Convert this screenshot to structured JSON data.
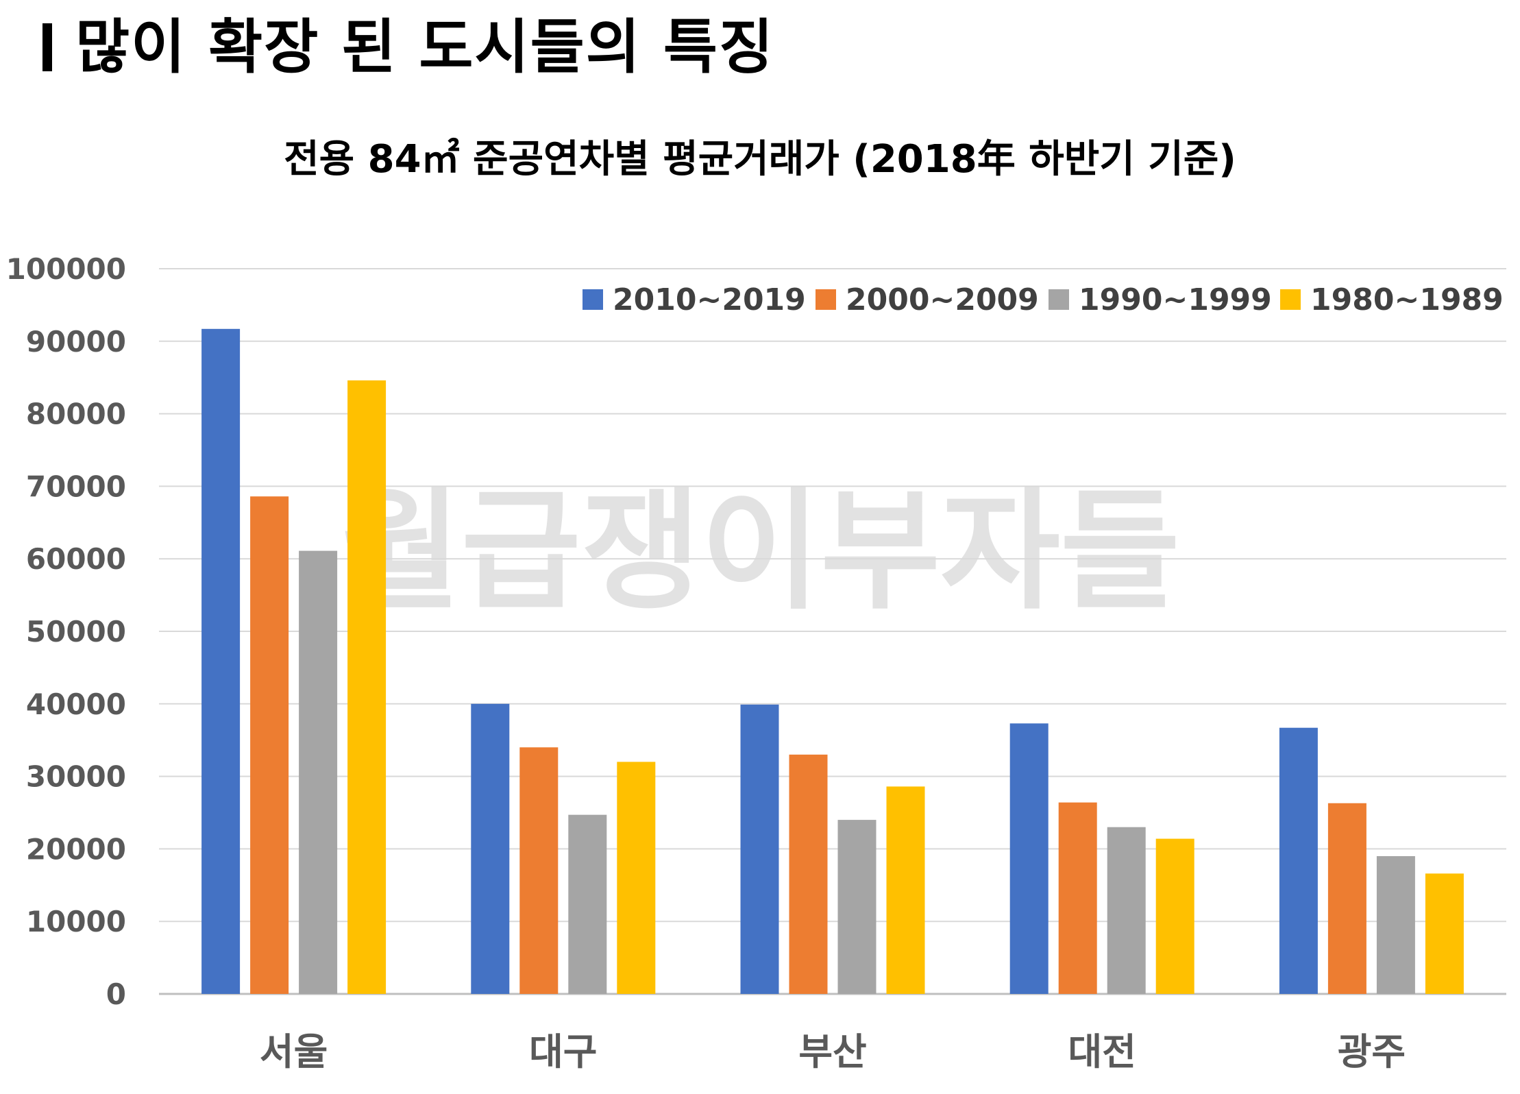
{
  "page_title": "많이 확장 된 도시들의 특징",
  "watermark": "월급쟁이부자들",
  "chart_data": {
    "type": "bar",
    "title": "전용 84㎡ 준공연차별 평균거래가 (2018年 하반기 기준)",
    "xlabel": "",
    "ylabel": "",
    "ylim": [
      0,
      100000
    ],
    "yticks": [
      "0",
      "10000",
      "20000",
      "30000",
      "40000",
      "50000",
      "60000",
      "70000",
      "80000",
      "90000",
      "100000"
    ],
    "categories": [
      "서울",
      "대구",
      "부산",
      "대전",
      "광주"
    ],
    "series": [
      {
        "name": "2010~2019",
        "color": "#4472C4",
        "values": [
          91700,
          40000,
          39900,
          37300,
          36700
        ]
      },
      {
        "name": "2000~2009",
        "color": "#ED7D31",
        "values": [
          68600,
          34000,
          33000,
          26400,
          26300
        ]
      },
      {
        "name": "1990~1999",
        "color": "#A5A5A5",
        "values": [
          61100,
          24700,
          24000,
          23000,
          19000
        ]
      },
      {
        "name": "1980~1989",
        "color": "#FFC000",
        "values": [
          84600,
          32000,
          28600,
          21400,
          16600
        ]
      }
    ],
    "grid": true,
    "legend_position": "top-right"
  }
}
